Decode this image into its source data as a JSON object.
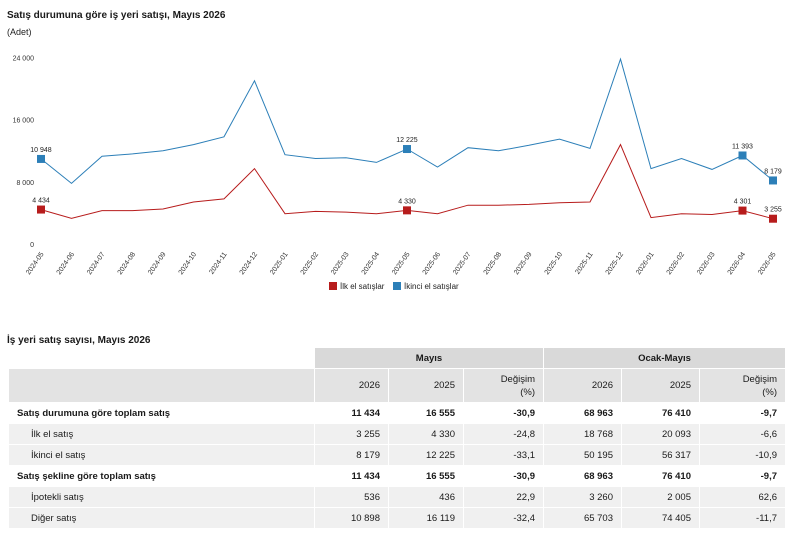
{
  "chart_data": {
    "type": "line",
    "title": "Satış durumuna göre iş yeri satışı, Mayıs 2026",
    "unit": "(Adet)",
    "ylim": [
      0,
      26000
    ],
    "yticks": [
      0,
      8000,
      16000,
      24000
    ],
    "ytick_labels": [
      "0",
      "8 000",
      "16 000",
      "24 000"
    ],
    "categories": [
      "2024-05",
      "2024-06",
      "2024-07",
      "2024-08",
      "2024-09",
      "2024-10",
      "2024-11",
      "2024-12",
      "2025-01",
      "2025-02",
      "2025-03",
      "2025-04",
      "2025-05",
      "2025-06",
      "2025-07",
      "2025-08",
      "2025-09",
      "2025-10",
      "2025-11",
      "2025-12",
      "2026-01",
      "2026-02",
      "2026-03",
      "2026-04",
      "2026-05"
    ],
    "series": [
      {
        "name": "İlk el satışlar",
        "color": "#b71c1c",
        "values": [
          4434,
          3300,
          4300,
          4300,
          4500,
          5400,
          5800,
          9700,
          3900,
          4200,
          4100,
          3900,
          4330,
          3900,
          5000,
          5000,
          5100,
          5300,
          5400,
          12800,
          3400,
          3900,
          3800,
          4301,
          3255
        ],
        "labels": [
          {
            "index": 0,
            "text": "4 434"
          },
          {
            "index": 12,
            "text": "4 330"
          },
          {
            "index": 23,
            "text": "4 301"
          },
          {
            "index": 24,
            "text": "3 255"
          }
        ]
      },
      {
        "name": "İkinci el satışlar",
        "color": "#2c7fb8",
        "values": [
          10948,
          7800,
          11300,
          11600,
          12000,
          12800,
          13800,
          21000,
          11500,
          11000,
          11100,
          10500,
          12225,
          9900,
          12400,
          12000,
          12700,
          13500,
          12300,
          23800,
          9700,
          11000,
          9600,
          11393,
          8179
        ],
        "labels": [
          {
            "index": 0,
            "text": "10 948"
          },
          {
            "index": 12,
            "text": "12 225"
          },
          {
            "index": 23,
            "text": "11 393"
          },
          {
            "index": 24,
            "text": "8 179"
          }
        ]
      }
    ],
    "legend": "bottom-center"
  },
  "table": {
    "title": "İş yeri satış sayısı, Mayıs 2026",
    "groups": [
      "Mayıs",
      "Ocak-Mayıs"
    ],
    "columns": [
      "2026",
      "2025",
      "Değişim",
      "(%)"
    ],
    "rows": [
      {
        "label": "Satış durumuna göre toplam satış",
        "kind": "total",
        "cells": [
          "11 434",
          "16 555",
          "-30,9",
          "68 963",
          "76 410",
          "-9,7"
        ]
      },
      {
        "label": "İlk el satış",
        "kind": "sub",
        "cells": [
          "3 255",
          "4 330",
          "-24,8",
          "18 768",
          "20 093",
          "-6,6"
        ]
      },
      {
        "label": "İkinci el satış",
        "kind": "sub",
        "cells": [
          "8 179",
          "12 225",
          "-33,1",
          "50 195",
          "56 317",
          "-10,9"
        ]
      },
      {
        "label": "Satış şekline göre toplam satış",
        "kind": "total",
        "cells": [
          "11 434",
          "16 555",
          "-30,9",
          "68 963",
          "76 410",
          "-9,7"
        ]
      },
      {
        "label": "İpotekli satış",
        "kind": "sub",
        "cells": [
          "536",
          "436",
          "22,9",
          "3 260",
          "2 005",
          "62,6"
        ]
      },
      {
        "label": "Diğer satış",
        "kind": "sub",
        "cells": [
          "10 898",
          "16 119",
          "-32,4",
          "65 703",
          "74 405",
          "-11,7"
        ]
      }
    ]
  }
}
